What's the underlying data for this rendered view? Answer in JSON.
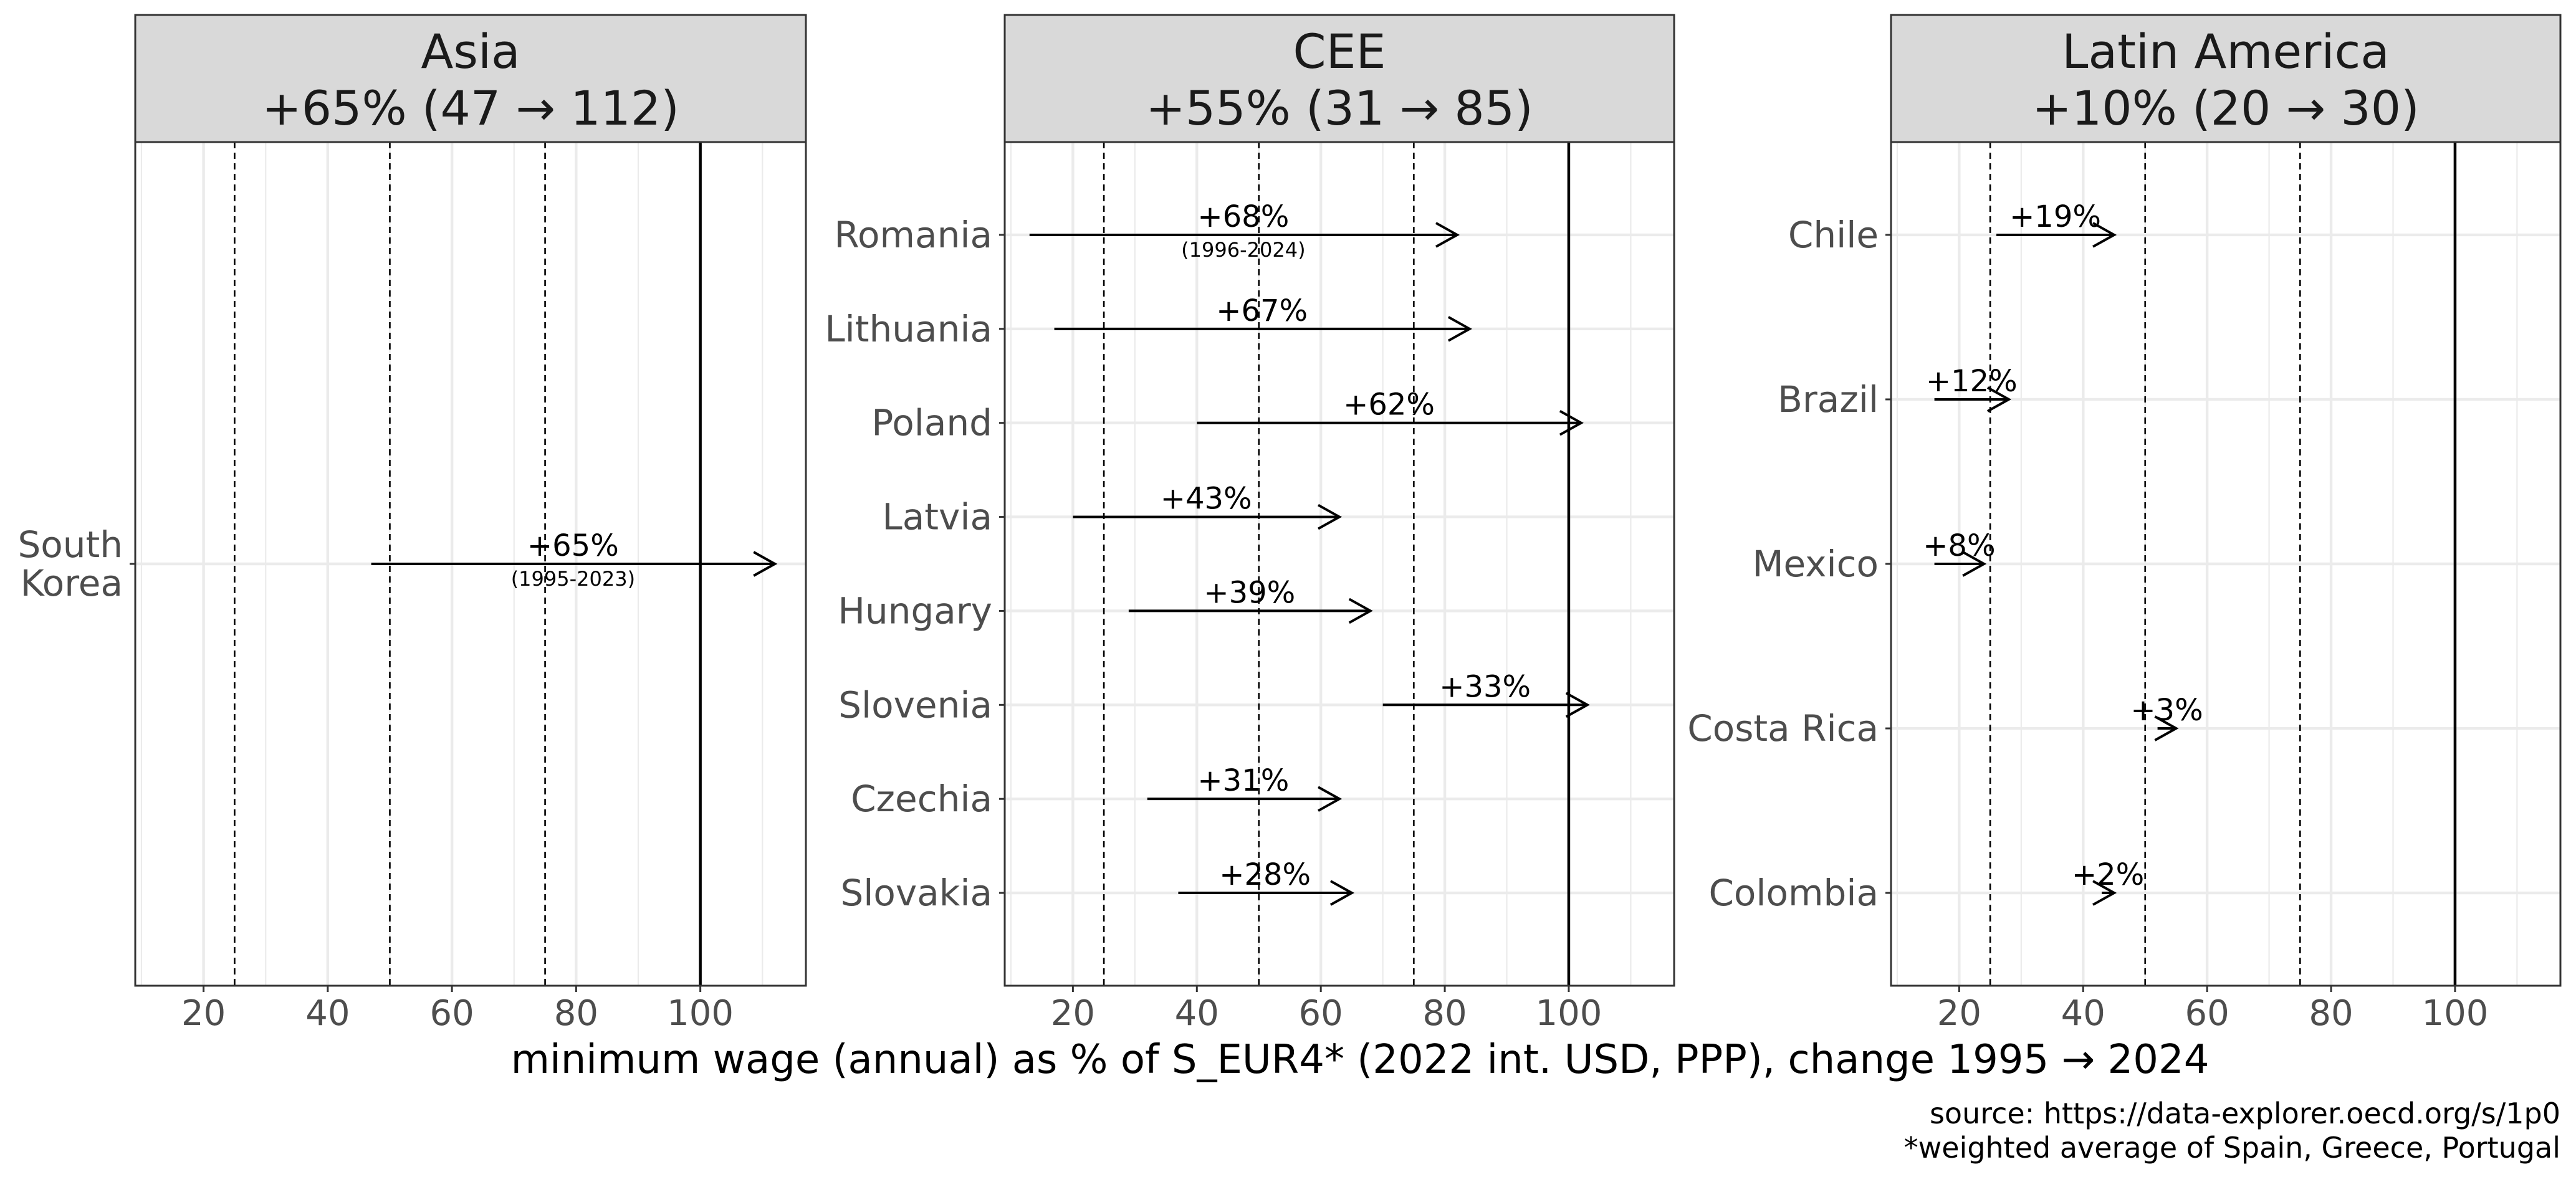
{
  "chart_data": {
    "type": "arrow-range",
    "xlabel": "minimum wage (annual) as % of S_EUR4* (2022 int. USD, PPP), change 1995 → 2024",
    "xlim": [
      9,
      117
    ],
    "xticks": [
      20,
      40,
      60,
      80,
      100
    ],
    "reference_lines": [
      {
        "value": 25,
        "style": "dashed"
      },
      {
        "value": 50,
        "style": "dashed"
      },
      {
        "value": 75,
        "style": "dashed"
      },
      {
        "value": 100,
        "style": "solid"
      }
    ],
    "grid": true,
    "panels": [
      {
        "title_line1": "Asia",
        "title_line2": "+65% (47 → 112)",
        "rows": [
          {
            "country": "South\nKorea",
            "start": 47,
            "end": 112,
            "label": "+65%",
            "period": "(1995-2023)"
          }
        ]
      },
      {
        "title_line1": "CEE",
        "title_line2": "+55% (31 → 85)",
        "rows": [
          {
            "country": "Romania",
            "start": 13,
            "end": 82,
            "label": "+68%",
            "period": "(1996-2024)"
          },
          {
            "country": "Lithuania",
            "start": 17,
            "end": 84,
            "label": "+67%"
          },
          {
            "country": "Poland",
            "start": 40,
            "end": 102,
            "label": "+62%"
          },
          {
            "country": "Latvia",
            "start": 20,
            "end": 63,
            "label": "+43%"
          },
          {
            "country": "Hungary",
            "start": 29,
            "end": 68,
            "label": "+39%"
          },
          {
            "country": "Slovenia",
            "start": 70,
            "end": 103,
            "label": "+33%"
          },
          {
            "country": "Czechia",
            "start": 32,
            "end": 63,
            "label": "+31%"
          },
          {
            "country": "Slovakia",
            "start": 37,
            "end": 65,
            "label": "+28%"
          }
        ]
      },
      {
        "title_line1": "Latin America",
        "title_line2": "+10% (20 → 30)",
        "rows": [
          {
            "country": "Chile",
            "start": 26,
            "end": 45,
            "label": "+19%"
          },
          {
            "country": "Brazil",
            "start": 16,
            "end": 28,
            "label": "+12%"
          },
          {
            "country": "Mexico",
            "start": 16,
            "end": 24,
            "label": "+8%"
          },
          {
            "country": "Costa Rica",
            "start": 52,
            "end": 55,
            "label": "+3%"
          },
          {
            "country": "Colombia",
            "start": 43,
            "end": 45,
            "label": "+2%"
          }
        ]
      }
    ]
  },
  "caption": {
    "source": "source: https://data-explorer.oecd.org/s/1p0",
    "note": "*weighted average of Spain, Greece, Portugal"
  }
}
